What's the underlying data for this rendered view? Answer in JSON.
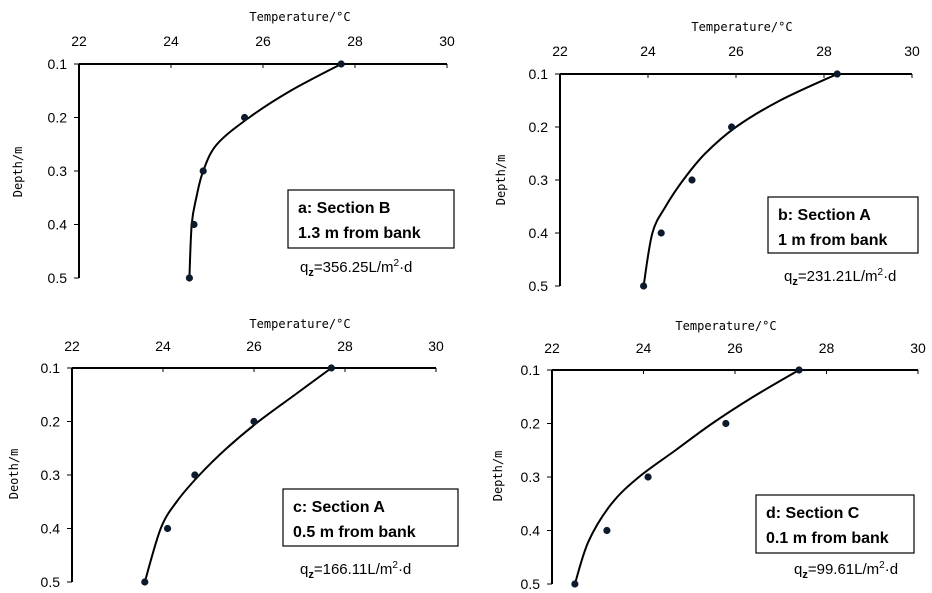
{
  "chart_data": [
    {
      "type": "scatter",
      "panel": "a",
      "xlabel": "Temperature/°C",
      "ylabel": "Depth/m",
      "xlim": [
        22,
        30
      ],
      "ylim": [
        0.1,
        0.5
      ],
      "x_ticks": [
        "22",
        "24",
        "26",
        "28",
        "30"
      ],
      "y_ticks": [
        "0.1",
        "0.2",
        "0.3",
        "0.4",
        "0.5"
      ],
      "series": [
        {
          "marker": "dot",
          "x": [
            27.7,
            25.6,
            24.7,
            24.5,
            24.4
          ],
          "y": [
            0.1,
            0.2,
            0.3,
            0.4,
            0.5
          ]
        },
        {
          "line": "fitted curve",
          "x": [
            27.7,
            26.6,
            25.7,
            25.0,
            24.7,
            24.55,
            24.45,
            24.4
          ],
          "y": [
            0.1,
            0.15,
            0.2,
            0.25,
            0.3,
            0.35,
            0.4,
            0.5
          ]
        }
      ],
      "box_line1": "a: Section B",
      "box_line2": "1.3 m from bank",
      "flux_prefix": "q",
      "flux_sub": "z",
      "flux_value": "=356.25L/m",
      "flux_sup": "2",
      "flux_unit": "·d"
    },
    {
      "type": "scatter",
      "panel": "b",
      "xlabel": "Temperature/°C",
      "ylabel": "Depth/m",
      "xlim": [
        22,
        30
      ],
      "ylim": [
        0.1,
        0.5
      ],
      "x_ticks": [
        "22",
        "24",
        "26",
        "28",
        "30"
      ],
      "y_ticks": [
        "0.1",
        "0.2",
        "0.3",
        "0.4",
        "0.5"
      ],
      "series": [
        {
          "marker": "dot",
          "x": [
            28.3,
            25.9,
            25.0,
            24.3,
            23.9
          ],
          "y": [
            0.1,
            0.2,
            0.3,
            0.4,
            0.5
          ]
        },
        {
          "line": "fitted curve",
          "x": [
            28.3,
            27.0,
            26.0,
            25.3,
            24.8,
            24.4,
            24.1,
            23.9
          ],
          "y": [
            0.1,
            0.15,
            0.2,
            0.25,
            0.3,
            0.35,
            0.4,
            0.5
          ]
        }
      ],
      "box_line1": "b: Section A",
      "box_line2": "1 m from bank",
      "flux_prefix": "q",
      "flux_sub": "z",
      "flux_value": "=231.21L/m",
      "flux_sup": "2",
      "flux_unit": "·d"
    },
    {
      "type": "scatter",
      "panel": "c",
      "xlabel": "Temperature/°C",
      "ylabel": "Depth/m",
      "xlim": [
        22,
        30
      ],
      "ylim": [
        0.1,
        0.5
      ],
      "x_ticks": [
        "22",
        "24",
        "26",
        "28",
        "30"
      ],
      "y_ticks": [
        "0.1",
        "0.2",
        "0.3",
        "0.4",
        "0.5"
      ],
      "series": [
        {
          "marker": "dot",
          "x": [
            27.7,
            26.0,
            24.7,
            24.1,
            23.6
          ],
          "y": [
            0.1,
            0.2,
            0.3,
            0.4,
            0.5
          ]
        },
        {
          "line": "fitted curve",
          "x": [
            27.7,
            26.9,
            26.1,
            25.4,
            24.8,
            24.3,
            23.95,
            23.6
          ],
          "y": [
            0.1,
            0.15,
            0.2,
            0.25,
            0.3,
            0.35,
            0.4,
            0.5
          ]
        }
      ],
      "box_line1": "c: Section A",
      "box_line2": "0.5 m from bank",
      "flux_prefix": "q",
      "flux_sub": "z",
      "flux_value": "=166.11L/m",
      "flux_sup": "2",
      "flux_unit": "·d"
    },
    {
      "type": "scatter",
      "panel": "d",
      "xlabel": "Temperature/°C",
      "ylabel": "Depth/m",
      "xlim": [
        22,
        30
      ],
      "ylim": [
        0.1,
        0.5
      ],
      "x_ticks": [
        "22",
        "24",
        "26",
        "28",
        "30"
      ],
      "y_ticks": [
        "0.1",
        "0.2",
        "0.3",
        "0.4",
        "0.5"
      ],
      "series": [
        {
          "marker": "dot",
          "x": [
            27.4,
            25.8,
            24.1,
            23.2,
            22.5
          ],
          "y": [
            0.1,
            0.2,
            0.3,
            0.4,
            0.5
          ]
        },
        {
          "line": "fitted curve",
          "x": [
            27.4,
            26.4,
            25.5,
            24.7,
            23.9,
            23.3,
            22.8,
            22.5
          ],
          "y": [
            0.1,
            0.15,
            0.2,
            0.25,
            0.3,
            0.35,
            0.42,
            0.5
          ]
        }
      ],
      "box_line1": "d: Section C",
      "box_line2": "0.1 m from bank",
      "flux_prefix": "q",
      "flux_sub": "z",
      "flux_value": "=99.61L/m",
      "flux_sup": "2",
      "flux_unit": "·d"
    }
  ],
  "figure_labels": {
    "a_xlabel": "Temperature/°C",
    "a_ylabel": "Depth/m",
    "b_xlabel": "Temperature/°C",
    "b_ylabel": "Depth/m",
    "c_xlabel": "Temperature/°C",
    "c_ylabel": "Deoth/m",
    "d_xlabel": "Temperature/°C",
    "d_ylabel": "Depth/m"
  }
}
